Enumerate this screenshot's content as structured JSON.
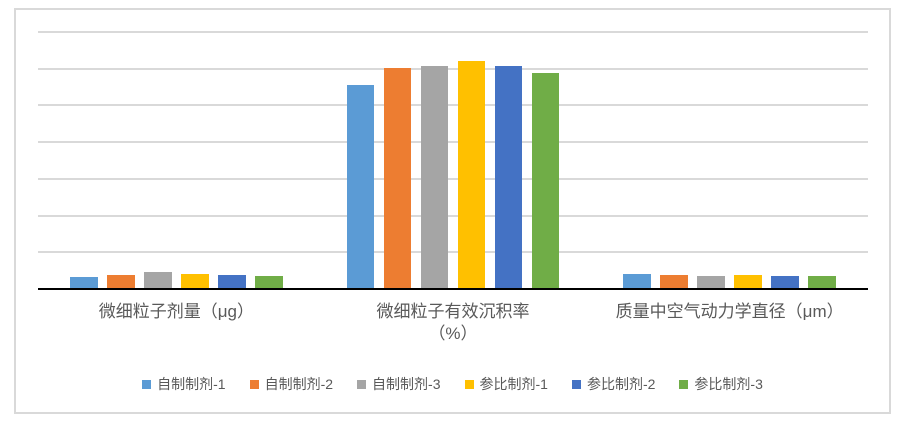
{
  "frame": {
    "border_color": "#D9D9D9",
    "background_color": "#FFFFFF"
  },
  "axes": {
    "axis_color": "#000000",
    "gridline_color": "#D9D9D9",
    "label_color": "#595959",
    "y_tick_labels_visible": false
  },
  "chart_data": {
    "type": "bar",
    "title": "",
    "categories": [
      "微细粒子剂量（μg）",
      "微细粒子有效沉积率（%）",
      "质量中空气动力学直径（μm）"
    ],
    "category_label_lines": [
      [
        "微细粒子剂量（μg）"
      ],
      [
        "微细粒子有效沉积率",
        "（%）"
      ],
      [
        "质量中空气动力学直径（μm）"
      ]
    ],
    "series": [
      {
        "name": "自制制剂-1",
        "color": "#5B9BD5",
        "values": [
          3.3,
          55.5,
          4.1
        ]
      },
      {
        "name": "自制制剂-2",
        "color": "#ED7D31",
        "values": [
          3.9,
          60.2,
          3.8
        ]
      },
      {
        "name": "自制制剂-3",
        "color": "#A5A5A5",
        "values": [
          4.6,
          60.8,
          3.5
        ]
      },
      {
        "name": "参比制剂-1",
        "color": "#FFC000",
        "values": [
          4.0,
          62.0,
          3.7
        ]
      },
      {
        "name": "参比制剂-2",
        "color": "#4472C4",
        "values": [
          3.9,
          60.8,
          3.5
        ]
      },
      {
        "name": "参比制剂-3",
        "color": "#70AD47",
        "values": [
          3.5,
          58.8,
          3.6
        ]
      }
    ],
    "xlabel": "",
    "ylabel": "",
    "ylim": [
      0,
      70
    ],
    "gridline_step": 10,
    "grid": true,
    "legend_position": "bottom"
  }
}
